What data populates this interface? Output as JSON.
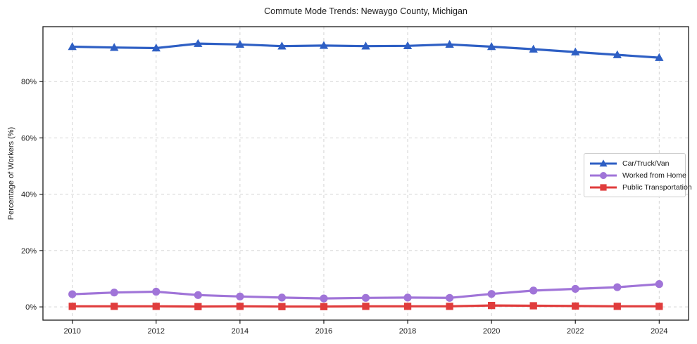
{
  "chart_data": {
    "type": "line",
    "title": "Commute Mode Trends: Newaygo County, Michigan",
    "xlabel": "",
    "ylabel": "Percentage of Workers (%)",
    "x": [
      2010,
      2011,
      2012,
      2013,
      2014,
      2015,
      2016,
      2017,
      2018,
      2019,
      2020,
      2021,
      2022,
      2023,
      2024
    ],
    "series": [
      {
        "name": "Car/Truck/Van",
        "color": "#2e5fc4",
        "marker": "triangle",
        "values": [
          92.4,
          92.1,
          91.9,
          93.5,
          93.2,
          92.6,
          92.8,
          92.6,
          92.7,
          93.2,
          92.4,
          91.5,
          90.5,
          89.5,
          88.5
        ]
      },
      {
        "name": "Worked from Home",
        "color": "#a074d8",
        "marker": "circle",
        "values": [
          4.5,
          5.1,
          5.4,
          4.2,
          3.7,
          3.3,
          3.0,
          3.2,
          3.3,
          3.2,
          4.6,
          5.8,
          6.4,
          7.0,
          8.1
        ]
      },
      {
        "name": "Public Transportation",
        "color": "#e03c3c",
        "marker": "square",
        "values": [
          0.2,
          0.2,
          0.2,
          0.1,
          0.2,
          0.1,
          0.1,
          0.2,
          0.2,
          0.2,
          0.5,
          0.4,
          0.3,
          0.2,
          0.2
        ]
      }
    ],
    "xlim": [
      2009.3,
      2024.7
    ],
    "ylim": [
      -4.7,
      99.5
    ],
    "xticks": {
      "values": [
        2010,
        2012,
        2014,
        2016,
        2018,
        2020,
        2022,
        2024
      ],
      "labels": [
        "2010",
        "2012",
        "2014",
        "2016",
        "2018",
        "2020",
        "2022",
        "2024"
      ]
    },
    "yticks": {
      "values": [
        0,
        20,
        40,
        60,
        80
      ],
      "labels": [
        "0%",
        "20%",
        "40%",
        "60%",
        "80%"
      ]
    },
    "grid": true,
    "grid_color": "#d3d3d3",
    "spine_color": "#1a1a1a",
    "legend_position": "center-right"
  }
}
